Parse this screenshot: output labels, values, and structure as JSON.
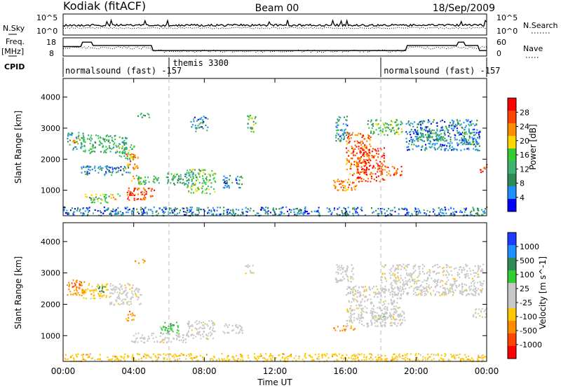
{
  "header": {
    "station": "Kodiak (fitACF)",
    "beam": "Beam 00",
    "date": "18/Sep/2009"
  },
  "colors": {
    "palette": [
      "#0000ff",
      "#1e90ff",
      "#2e8b57",
      "#3cb371",
      "#32cd32",
      "#ffd700",
      "#ff8c00",
      "#ff4500",
      "#ff0000"
    ],
    "velocity_palette": [
      "#ff0000",
      "#ff4500",
      "#ff8c00",
      "#ffc800",
      "#c8c8c8",
      "#c8c8c8",
      "#32cd32",
      "#2e8b57",
      "#1e90ff",
      "#1e3cff"
    ],
    "ground_scatter": "#c8c8c8"
  },
  "chart_data": [
    {
      "type": "line",
      "name": "noise_panel",
      "left_label": [
        "N.Sky",
        ""
      ],
      "right_label": [
        "N.Search",
        ""
      ],
      "left_ticks": [
        "10^5",
        "10^0"
      ],
      "right_ticks": [
        "10^5",
        "10^0"
      ],
      "legend_styles": {
        "left": "solid",
        "right": "dotted"
      }
    },
    {
      "type": "line",
      "name": "frequency_panel",
      "left_label": [
        "Freq.",
        "[MHz]"
      ],
      "right_label": [
        "Nave",
        ""
      ],
      "left_ticks": [
        18,
        8
      ],
      "right_ticks": [
        60,
        0
      ],
      "freq_steps_hours": [
        [
          0,
          13.2
        ],
        [
          1.0,
          13.2
        ],
        [
          1.1,
          15.6
        ],
        [
          1.6,
          15.6
        ],
        [
          1.7,
          13.8
        ],
        [
          5.0,
          13.8
        ],
        [
          5.1,
          11.0
        ],
        [
          19.4,
          11.0
        ],
        [
          19.5,
          13.8
        ],
        [
          22.3,
          13.8
        ],
        [
          22.4,
          15.6
        ],
        [
          22.7,
          15.6
        ],
        [
          22.8,
          13.8
        ],
        [
          23.5,
          13.8
        ],
        [
          23.6,
          11.0
        ],
        [
          24,
          11.0
        ]
      ],
      "legend_styles": {
        "left": "solid",
        "right": "dotted"
      }
    },
    {
      "type": "table",
      "name": "cpid_panel",
      "label": "CPID",
      "segments": [
        {
          "start_hour": 0,
          "text": "normalsound (fast) -157"
        },
        {
          "start_hour": 6.1,
          "text": "themis 3300"
        },
        {
          "start_hour": 18.05,
          "text": "normalsound (fast) -157"
        }
      ],
      "divider_hours": [
        6.0,
        18.0
      ]
    },
    {
      "type": "heatmap",
      "name": "power_panel",
      "ylabel": "Slant Range [km]",
      "yticks": [
        1000,
        2000,
        3000,
        4000
      ],
      "ylim": [
        180,
        4600
      ],
      "colorbar_label": "Power [dB]",
      "colorbar_ticks": [
        4,
        8,
        12,
        16,
        20,
        24,
        28
      ],
      "colorbar_range": [
        0,
        30
      ],
      "patches": [
        {
          "h0": 0.2,
          "h1": 1.2,
          "r0": 2300,
          "r1": 2900,
          "v": 10
        },
        {
          "h0": 0.4,
          "h1": 1.0,
          "r0": 2500,
          "r1": 2700,
          "v": 19
        },
        {
          "h0": 1.1,
          "h1": 2.6,
          "r0": 2200,
          "r1": 2800,
          "v": 12
        },
        {
          "h0": 2.6,
          "h1": 3.6,
          "r0": 2200,
          "r1": 2800,
          "v": 10
        },
        {
          "h0": 3.0,
          "h1": 4.0,
          "r0": 2000,
          "r1": 2500,
          "v": 15
        },
        {
          "h0": 3.5,
          "h1": 4.2,
          "r0": 1700,
          "r1": 2200,
          "v": 22
        },
        {
          "h0": 1.0,
          "h1": 3.8,
          "r0": 1500,
          "r1": 1800,
          "v": 7
        },
        {
          "h0": 1.2,
          "h1": 2.6,
          "r0": 600,
          "r1": 900,
          "v": 13
        },
        {
          "h0": 2.6,
          "h1": 3.2,
          "r0": 700,
          "r1": 900,
          "v": 20
        },
        {
          "h0": 3.6,
          "h1": 5.2,
          "r0": 700,
          "r1": 1100,
          "v": 25
        },
        {
          "h0": 4.2,
          "h1": 5.4,
          "r0": 1200,
          "r1": 1500,
          "v": 14
        },
        {
          "h0": 3.8,
          "h1": 4.4,
          "r0": 1300,
          "r1": 1500,
          "v": 18
        },
        {
          "h0": 5.8,
          "h1": 6.6,
          "r0": 1200,
          "r1": 1600,
          "v": 12
        },
        {
          "h0": 6.6,
          "h1": 7.4,
          "r0": 1200,
          "r1": 1600,
          "v": 9
        },
        {
          "h0": 7.0,
          "h1": 8.6,
          "r0": 900,
          "r1": 1700,
          "v": 14
        },
        {
          "h0": 9.0,
          "h1": 10.2,
          "r0": 1100,
          "r1": 1500,
          "v": 7
        },
        {
          "h0": 7.2,
          "h1": 8.2,
          "r0": 2900,
          "r1": 3400,
          "v": 8
        },
        {
          "h0": 10.4,
          "h1": 10.9,
          "r0": 2900,
          "r1": 3500,
          "v": 13
        },
        {
          "h0": 15.4,
          "h1": 16.2,
          "r0": 2600,
          "r1": 3400,
          "v": 8
        },
        {
          "h0": 15.3,
          "h1": 16.6,
          "r0": 1000,
          "r1": 1400,
          "v": 22
        },
        {
          "h0": 16.0,
          "h1": 17.4,
          "r0": 1500,
          "r1": 2900,
          "v": 24
        },
        {
          "h0": 16.6,
          "h1": 18.2,
          "r0": 1300,
          "r1": 2400,
          "v": 26
        },
        {
          "h0": 18.0,
          "h1": 19.2,
          "r0": 1500,
          "r1": 1800,
          "v": 25
        },
        {
          "h0": 17.2,
          "h1": 19.2,
          "r0": 2800,
          "r1": 3300,
          "v": 13
        },
        {
          "h0": 19.4,
          "h1": 23.6,
          "r0": 2300,
          "r1": 3300,
          "v": 6
        },
        {
          "h0": 20.0,
          "h1": 21.6,
          "r0": 2600,
          "r1": 3000,
          "v": 11
        },
        {
          "h0": 22.6,
          "h1": 23.4,
          "r0": 2500,
          "r1": 2900,
          "v": 12
        },
        {
          "h0": 23.6,
          "h1": 24.0,
          "r0": 1600,
          "r1": 1900,
          "v": 24
        },
        {
          "h0": 4.2,
          "h1": 4.9,
          "r0": 3300,
          "r1": 3500,
          "v": 12
        },
        {
          "h0": 0.0,
          "h1": 24.0,
          "r0": 200,
          "r1": 480,
          "v": 6
        }
      ]
    },
    {
      "type": "heatmap",
      "name": "velocity_panel",
      "ylabel": "Slant Range [km]",
      "yticks": [
        1000,
        2000,
        3000,
        4000
      ],
      "ylim": [
        180,
        4600
      ],
      "colorbar_label": "Velocity [m s^-1]",
      "colorbar_ticks": [
        1000,
        500,
        100,
        25,
        -25,
        -100,
        -500,
        -1000
      ],
      "patches": [
        {
          "h0": 0.2,
          "h1": 1.2,
          "r0": 2300,
          "r1": 2800,
          "c": 2
        },
        {
          "h0": 0.4,
          "h1": 1.0,
          "r0": 2500,
          "r1": 2700,
          "c": 1
        },
        {
          "h0": 1.1,
          "h1": 2.6,
          "r0": 2200,
          "r1": 2700,
          "c": 3
        },
        {
          "h0": 1.8,
          "h1": 2.4,
          "r0": 2400,
          "r1": 2600,
          "c": 7
        },
        {
          "h0": 2.6,
          "h1": 4.4,
          "r0": 2000,
          "r1": 2700,
          "c": 4
        },
        {
          "h0": 3.5,
          "h1": 4.1,
          "r0": 1500,
          "r1": 1800,
          "c": 2
        },
        {
          "h0": 5.4,
          "h1": 6.6,
          "r0": 1050,
          "r1": 1450,
          "c": 6
        },
        {
          "h0": 3.8,
          "h1": 7.0,
          "r0": 800,
          "r1": 1100,
          "c": 4
        },
        {
          "h0": 7.0,
          "h1": 8.6,
          "r0": 900,
          "r1": 1500,
          "c": 4
        },
        {
          "h0": 9.0,
          "h1": 10.2,
          "r0": 1100,
          "r1": 1400,
          "c": 4
        },
        {
          "h0": 10.3,
          "h1": 10.8,
          "r0": 3000,
          "r1": 3300,
          "c": 4
        },
        {
          "h0": 15.3,
          "h1": 16.5,
          "r0": 1150,
          "r1": 1350,
          "c": 2
        },
        {
          "h0": 16.0,
          "h1": 19.2,
          "r0": 1300,
          "r1": 2600,
          "c": 4
        },
        {
          "h0": 17.4,
          "h1": 19.4,
          "r0": 1500,
          "r1": 1800,
          "c": 5
        },
        {
          "h0": 15.4,
          "h1": 16.4,
          "r0": 2700,
          "r1": 3300,
          "c": 4
        },
        {
          "h0": 18.0,
          "h1": 23.8,
          "r0": 2300,
          "r1": 3300,
          "c": 4
        },
        {
          "h0": 23.2,
          "h1": 24.0,
          "r0": 1600,
          "r1": 1900,
          "c": 4
        },
        {
          "h0": 4.0,
          "h1": 4.7,
          "r0": 3300,
          "r1": 3450,
          "c": 2
        },
        {
          "h0": 0.0,
          "h1": 24.0,
          "r0": 200,
          "r1": 450,
          "c": 3
        }
      ]
    }
  ],
  "xaxis": {
    "label": "Time UT",
    "ticks": [
      "00:00",
      "04:00",
      "08:00",
      "12:00",
      "16:00",
      "20:00",
      "00:00"
    ],
    "range_hours": [
      0,
      24
    ]
  }
}
